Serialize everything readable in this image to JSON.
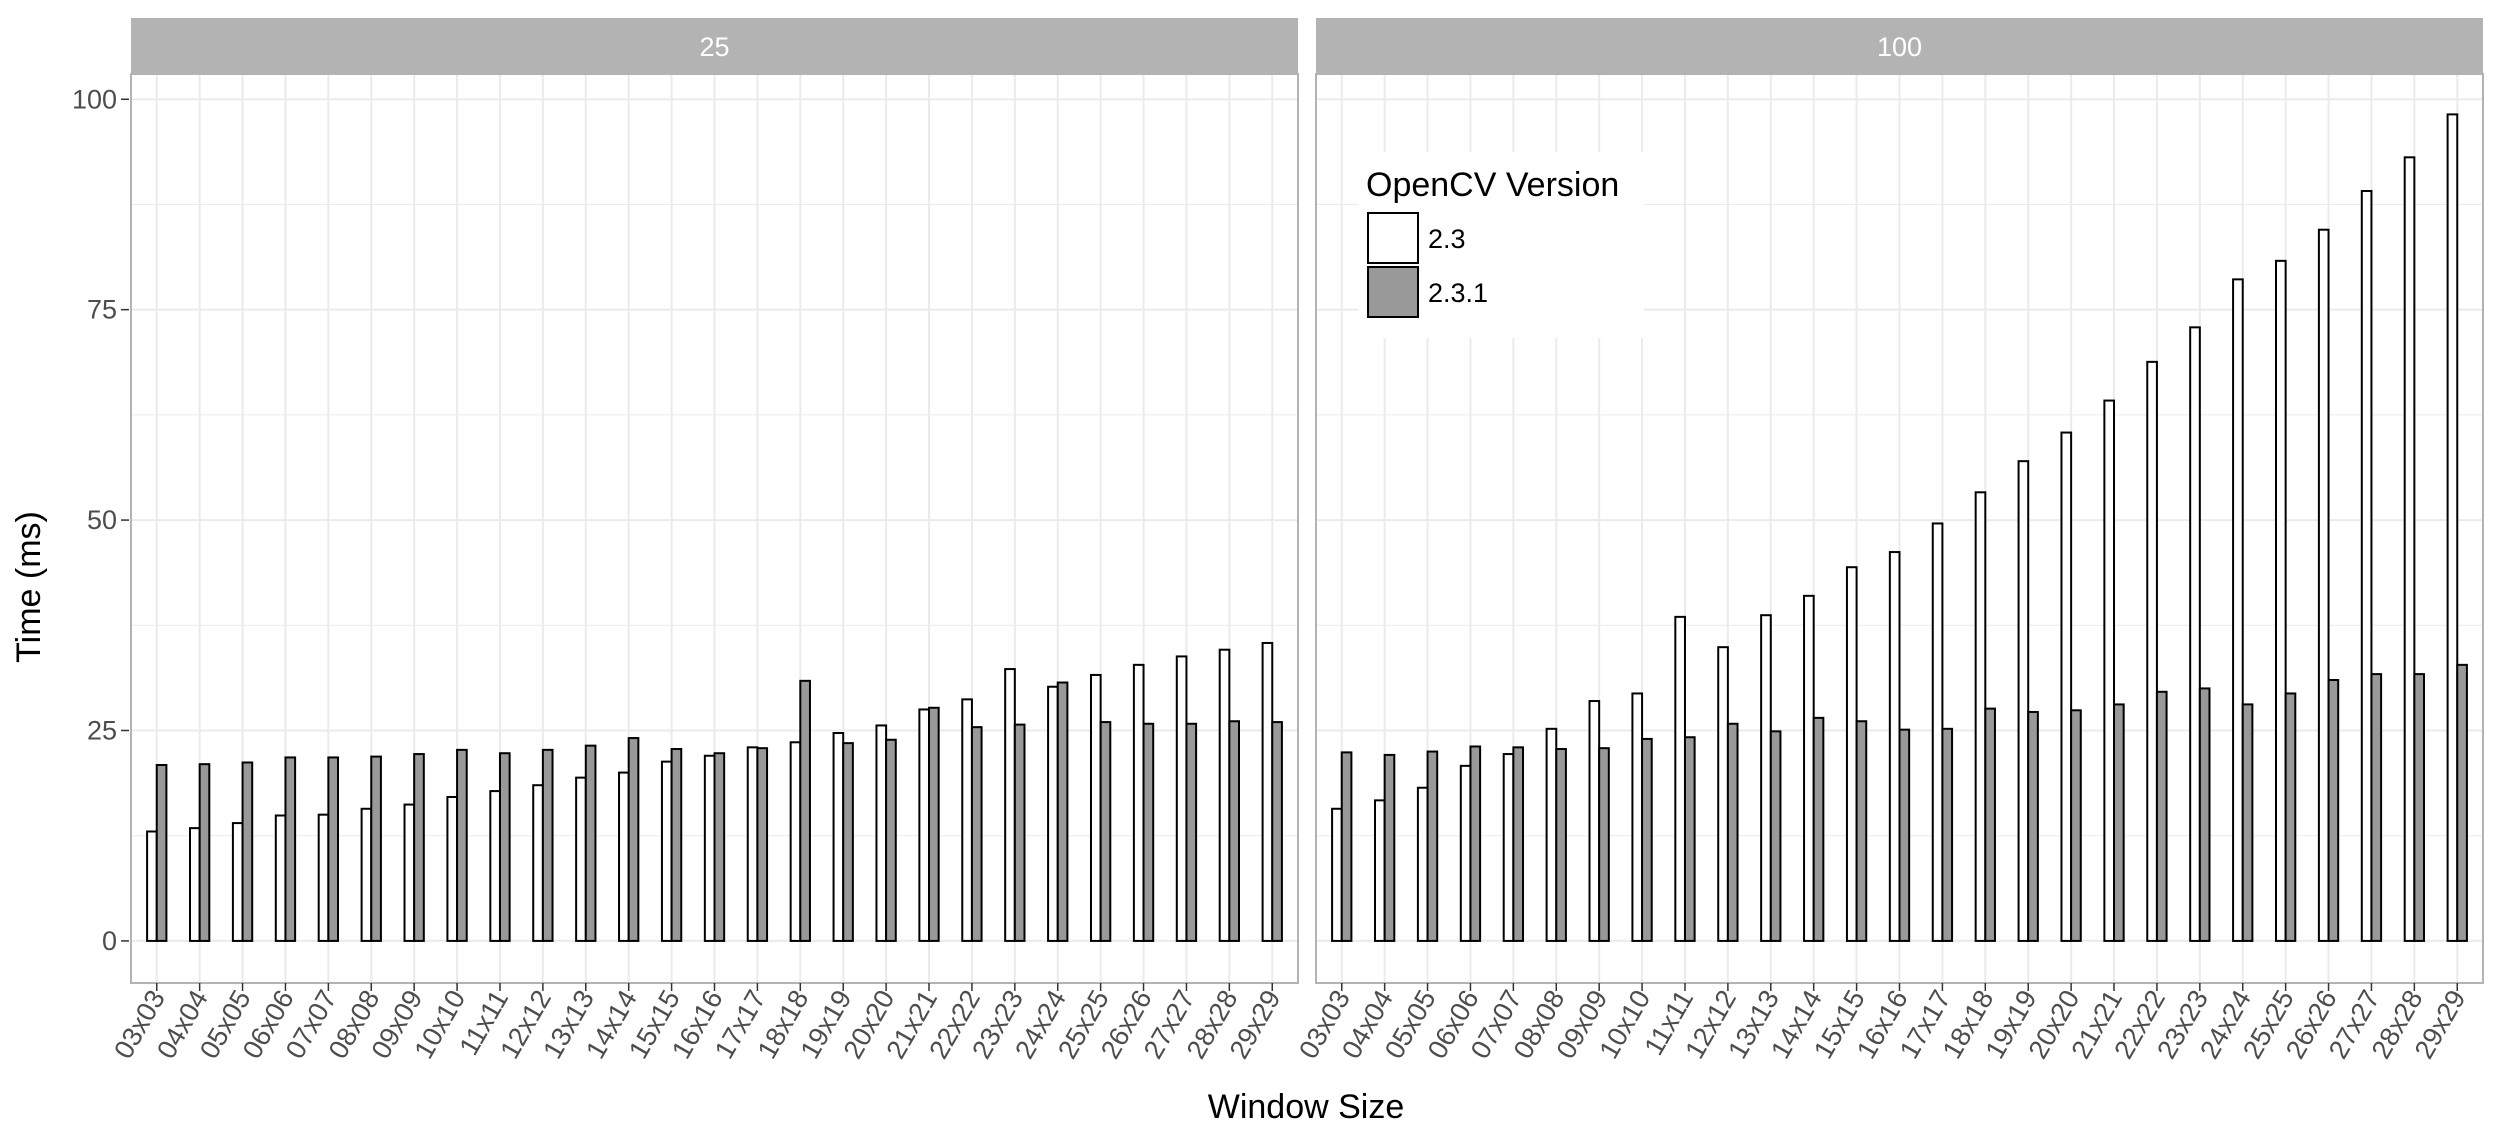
{
  "chart_data": {
    "type": "bar",
    "xlabel": "Window Size",
    "ylabel": "Time (ms)",
    "ylim": [
      -5,
      103
    ],
    "y_ticks": [
      0,
      25,
      50,
      75,
      100
    ],
    "grid": true,
    "legend": {
      "title": "OpenCV Version",
      "placement": "inside-top-left of right panel"
    },
    "colors": {
      "2.3": "#ffffff",
      "2.3.1": "#999999",
      "outline": "#000000",
      "strip": "#b3b3b3",
      "grid": "#ebebeb",
      "panel_border": "#b3b3b3"
    },
    "categories": [
      "03x03",
      "04x04",
      "05x05",
      "06x06",
      "07x07",
      "08x08",
      "09x09",
      "10x10",
      "11x11",
      "12x12",
      "13x13",
      "14x14",
      "15x15",
      "16x16",
      "17x17",
      "18x18",
      "19x19",
      "20x20",
      "21x21",
      "22x22",
      "23x23",
      "24x24",
      "25x25",
      "26x26",
      "27x27",
      "28x28",
      "29x29"
    ],
    "facets": [
      {
        "label": "25",
        "series": [
          {
            "name": "2.3",
            "values": [
              13.0,
              13.4,
              14.0,
              14.9,
              15.0,
              15.7,
              16.2,
              17.1,
              17.8,
              18.5,
              19.4,
              20.0,
              21.3,
              22.0,
              23.0,
              23.6,
              24.7,
              25.6,
              27.5,
              28.7,
              32.3,
              30.2,
              31.6,
              32.8,
              33.8,
              34.6,
              35.4
            ]
          },
          {
            "name": "2.3.1",
            "values": [
              20.9,
              21.0,
              21.2,
              21.8,
              21.8,
              21.9,
              22.2,
              22.7,
              22.3,
              22.7,
              23.2,
              24.1,
              22.8,
              22.3,
              22.9,
              30.9,
              23.5,
              23.9,
              27.7,
              25.4,
              25.7,
              30.7,
              26.0,
              25.8,
              25.8,
              26.1,
              26.0
            ]
          }
        ]
      },
      {
        "label": "100",
        "series": [
          {
            "name": "2.3",
            "values": [
              15.7,
              16.7,
              18.2,
              20.8,
              22.2,
              25.2,
              28.5,
              29.4,
              38.5,
              34.9,
              38.7,
              41.0,
              44.4,
              46.2,
              49.6,
              53.3,
              57.0,
              60.4,
              64.2,
              68.8,
              72.9,
              78.6,
              80.8,
              84.5,
              89.1,
              93.1,
              98.2
            ]
          },
          {
            "name": "2.3.1",
            "values": [
              22.4,
              22.1,
              22.5,
              23.1,
              23.0,
              22.8,
              22.9,
              24.0,
              24.2,
              25.8,
              24.9,
              26.5,
              26.1,
              25.1,
              25.2,
              27.6,
              27.2,
              27.4,
              28.1,
              29.6,
              30.0,
              28.1,
              29.4,
              31.0,
              31.7,
              31.7,
              32.8
            ]
          }
        ]
      }
    ]
  }
}
